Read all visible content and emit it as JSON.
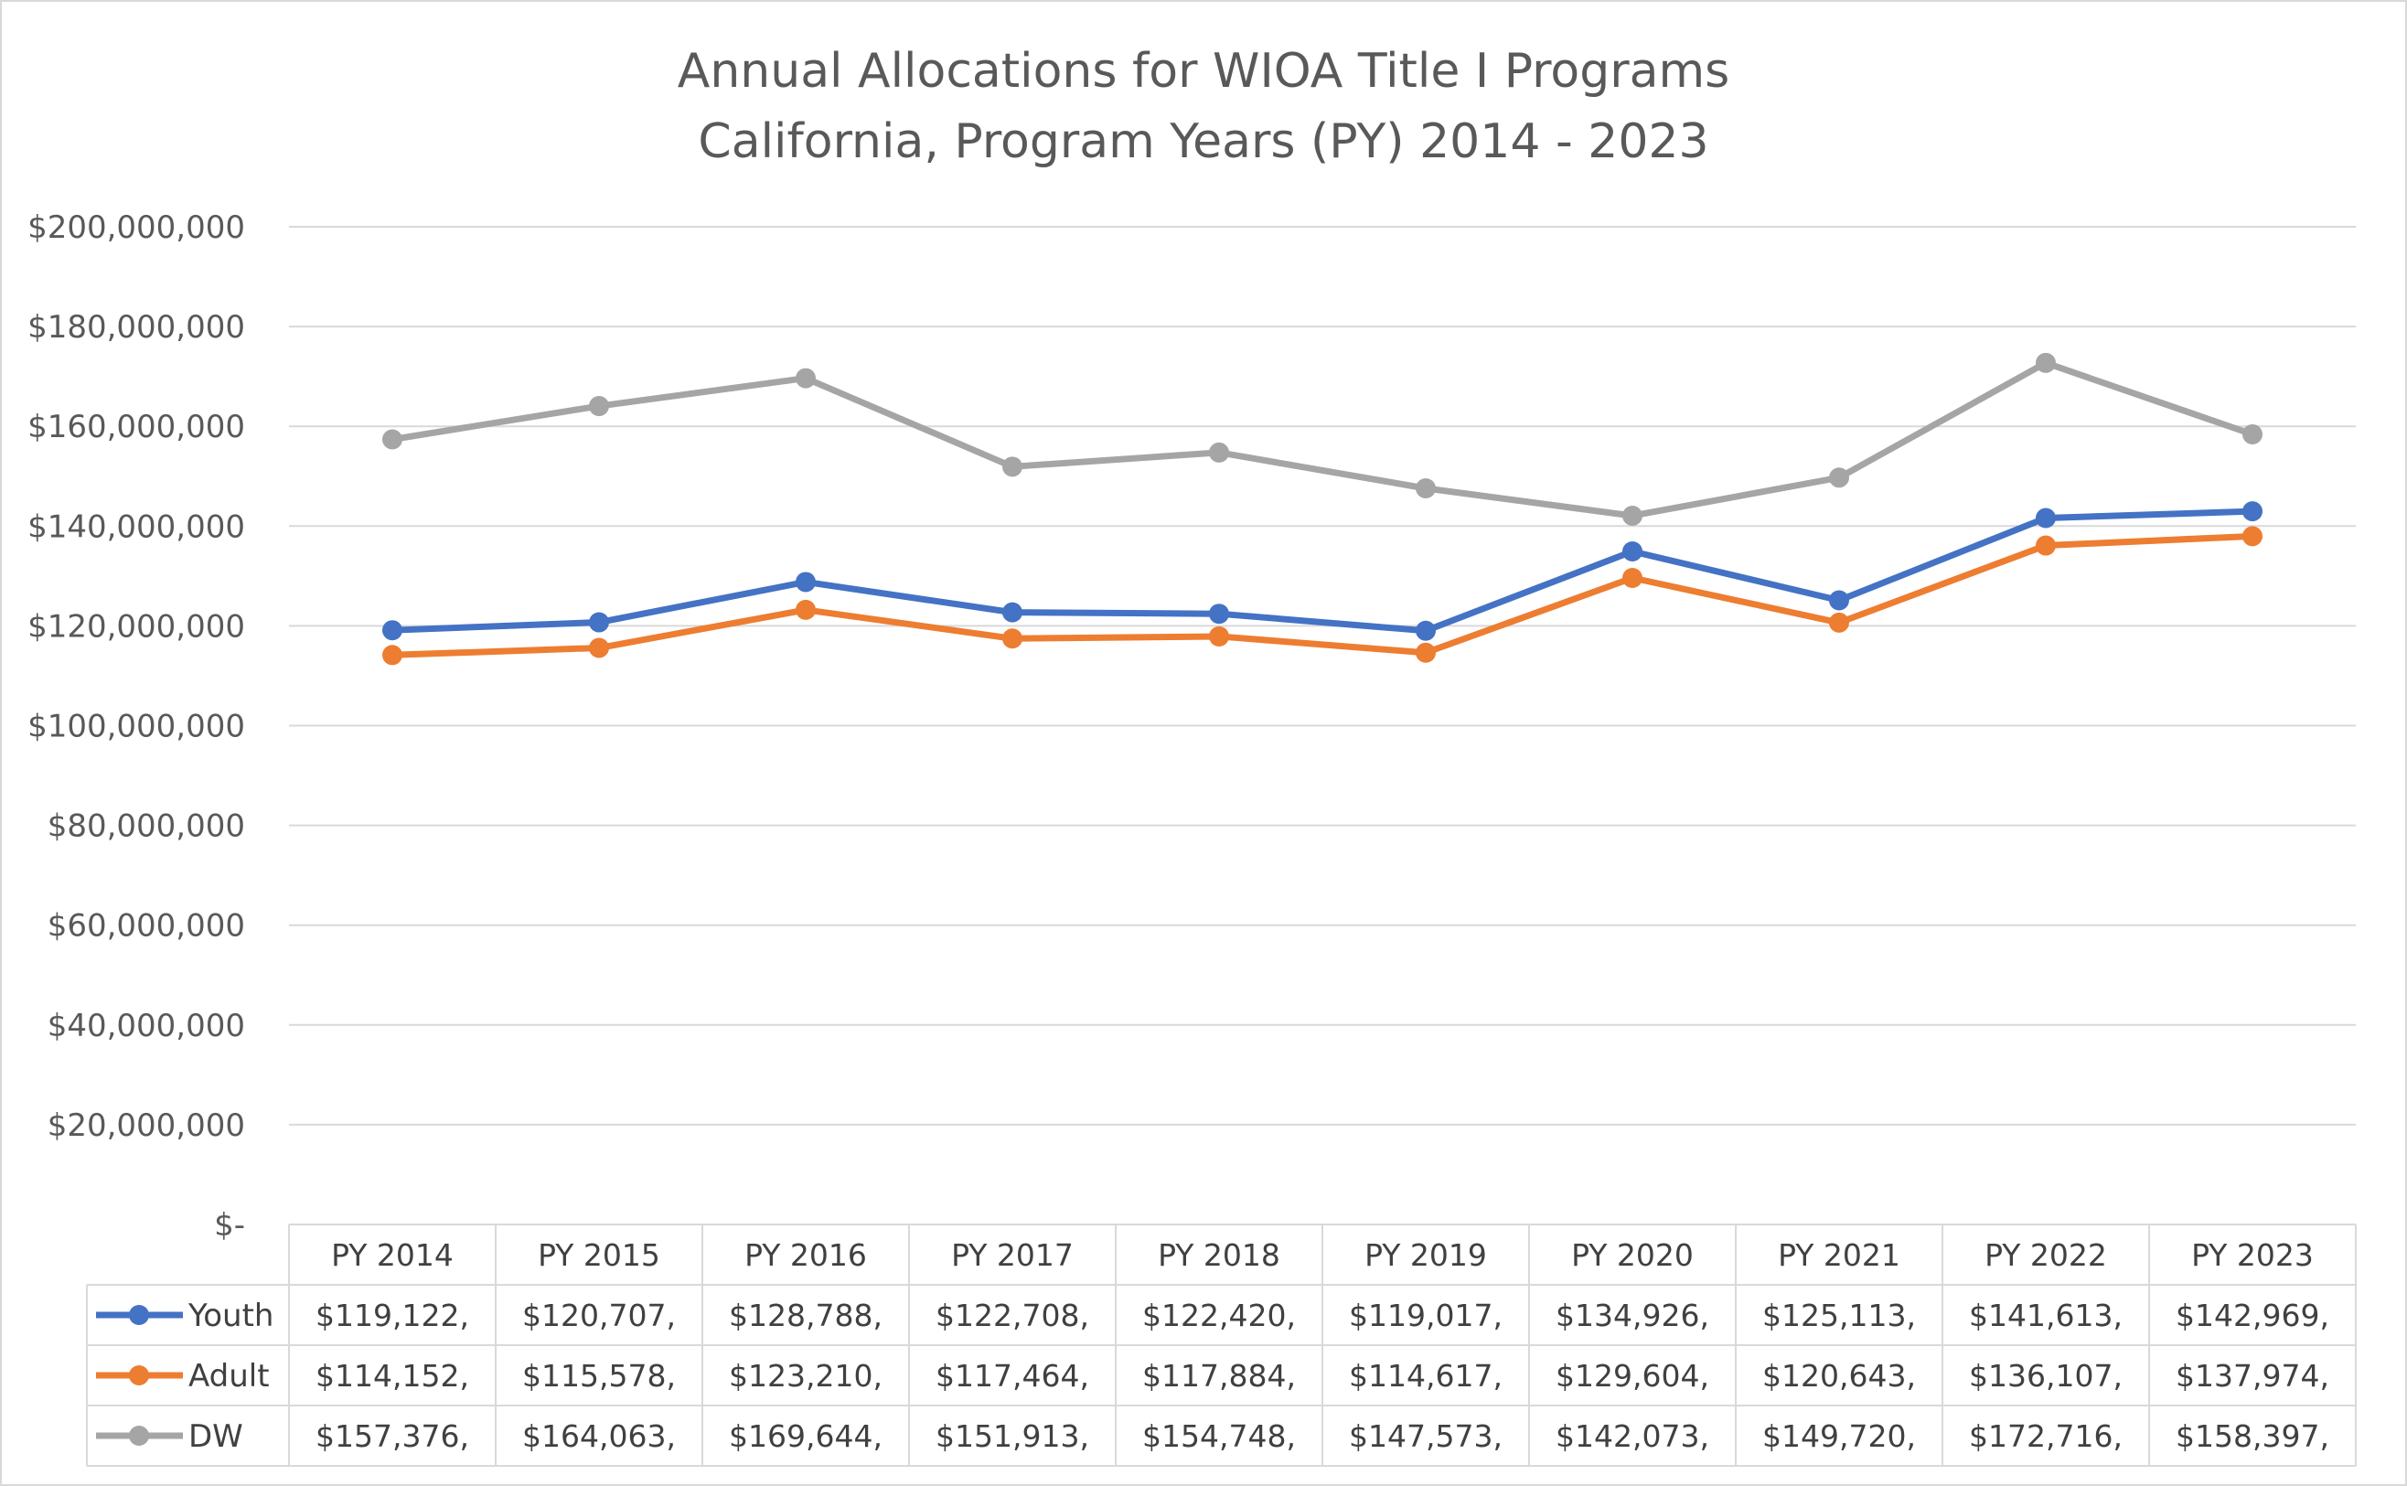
{
  "chart_data": {
    "type": "line",
    "title": "Annual Allocations for WIOA Title I Programs",
    "subtitle": "California, Program Years (PY) 2014 - 2023",
    "categories": [
      "PY 2014",
      "PY 2015",
      "PY 2016",
      "PY 2017",
      "PY 2018",
      "PY 2019",
      "PY 2020",
      "PY 2021",
      "PY 2022",
      "PY 2023"
    ],
    "ylim": [
      0,
      200000000
    ],
    "y_ticks": [
      0,
      20000000,
      40000000,
      60000000,
      80000000,
      100000000,
      120000000,
      140000000,
      160000000,
      180000000,
      200000000
    ],
    "y_tick_labels": [
      "$-",
      "$20,000,000",
      "$40,000,000",
      "$60,000,000",
      "$80,000,000",
      "$100,000,000",
      "$120,000,000",
      "$140,000,000",
      "$160,000,000",
      "$180,000,000",
      "$200,000,000"
    ],
    "grid": true,
    "legend": "data-table",
    "series": [
      {
        "name": "Youth",
        "color": "#4472C4",
        "values": [
          119122000,
          120707000,
          128788000,
          122708000,
          122420000,
          119017000,
          134926000,
          125113000,
          141613000,
          142969000
        ],
        "table_labels": [
          "$119,122,",
          "$120,707,",
          "$128,788,",
          "$122,708,",
          "$122,420,",
          "$119,017,",
          "$134,926,",
          "$125,113,",
          "$141,613,",
          "$142,969,"
        ]
      },
      {
        "name": "Adult",
        "color": "#ED7D31",
        "values": [
          114152000,
          115578000,
          123210000,
          117464000,
          117884000,
          114617000,
          129604000,
          120643000,
          136107000,
          137974000
        ],
        "table_labels": [
          "$114,152,",
          "$115,578,",
          "$123,210,",
          "$117,464,",
          "$117,884,",
          "$114,617,",
          "$129,604,",
          "$120,643,",
          "$136,107,",
          "$137,974,"
        ]
      },
      {
        "name": "DW",
        "color": "#A5A5A5",
        "values": [
          157376000,
          164063000,
          169644000,
          151913000,
          154748000,
          147573000,
          142073000,
          149720000,
          172716000,
          158397000
        ],
        "table_labels": [
          "$157,376,",
          "$164,063,",
          "$169,644,",
          "$151,913,",
          "$154,748,",
          "$147,573,",
          "$142,073,",
          "$149,720,",
          "$172,716,",
          "$158,397,"
        ]
      }
    ]
  }
}
